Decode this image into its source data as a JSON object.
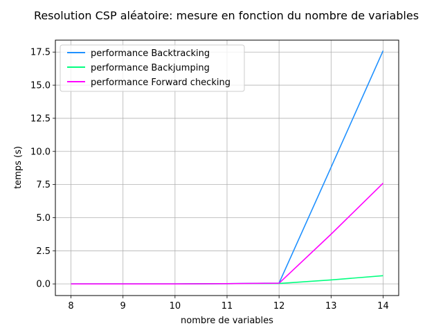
{
  "chart_data": {
    "type": "line",
    "title": "Resolution CSP aléatoire: mesure en fonction du nombre de variables",
    "xlabel": "nombre de variables",
    "ylabel": "temps (s)",
    "xlim": [
      7.7,
      14.3
    ],
    "ylim": [
      -0.88,
      18.4
    ],
    "x_ticks": [
      8,
      9,
      10,
      11,
      12,
      13,
      14
    ],
    "y_ticks": [
      0.0,
      2.5,
      5.0,
      7.5,
      10.0,
      12.5,
      15.0,
      17.5
    ],
    "grid": true,
    "legend_position": "top-left",
    "series": [
      {
        "name": "performance Backtracking",
        "color": "#1e90ff",
        "x": [
          8,
          9,
          10,
          11,
          12,
          13,
          14
        ],
        "values": [
          0.0,
          0.0,
          0.0,
          0.02,
          0.06,
          8.8,
          17.6
        ]
      },
      {
        "name": "performance Backjumping",
        "color": "#00ff7f",
        "x": [
          8,
          9,
          10,
          11,
          12,
          13,
          14
        ],
        "values": [
          0.0,
          0.0,
          0.0,
          0.02,
          0.03,
          0.3,
          0.62
        ]
      },
      {
        "name": "performance Forward checking",
        "color": "#ff00ff",
        "x": [
          8,
          9,
          10,
          11,
          12,
          13,
          14
        ],
        "values": [
          0.0,
          0.0,
          0.0,
          0.02,
          0.05,
          3.75,
          7.6
        ]
      }
    ]
  }
}
